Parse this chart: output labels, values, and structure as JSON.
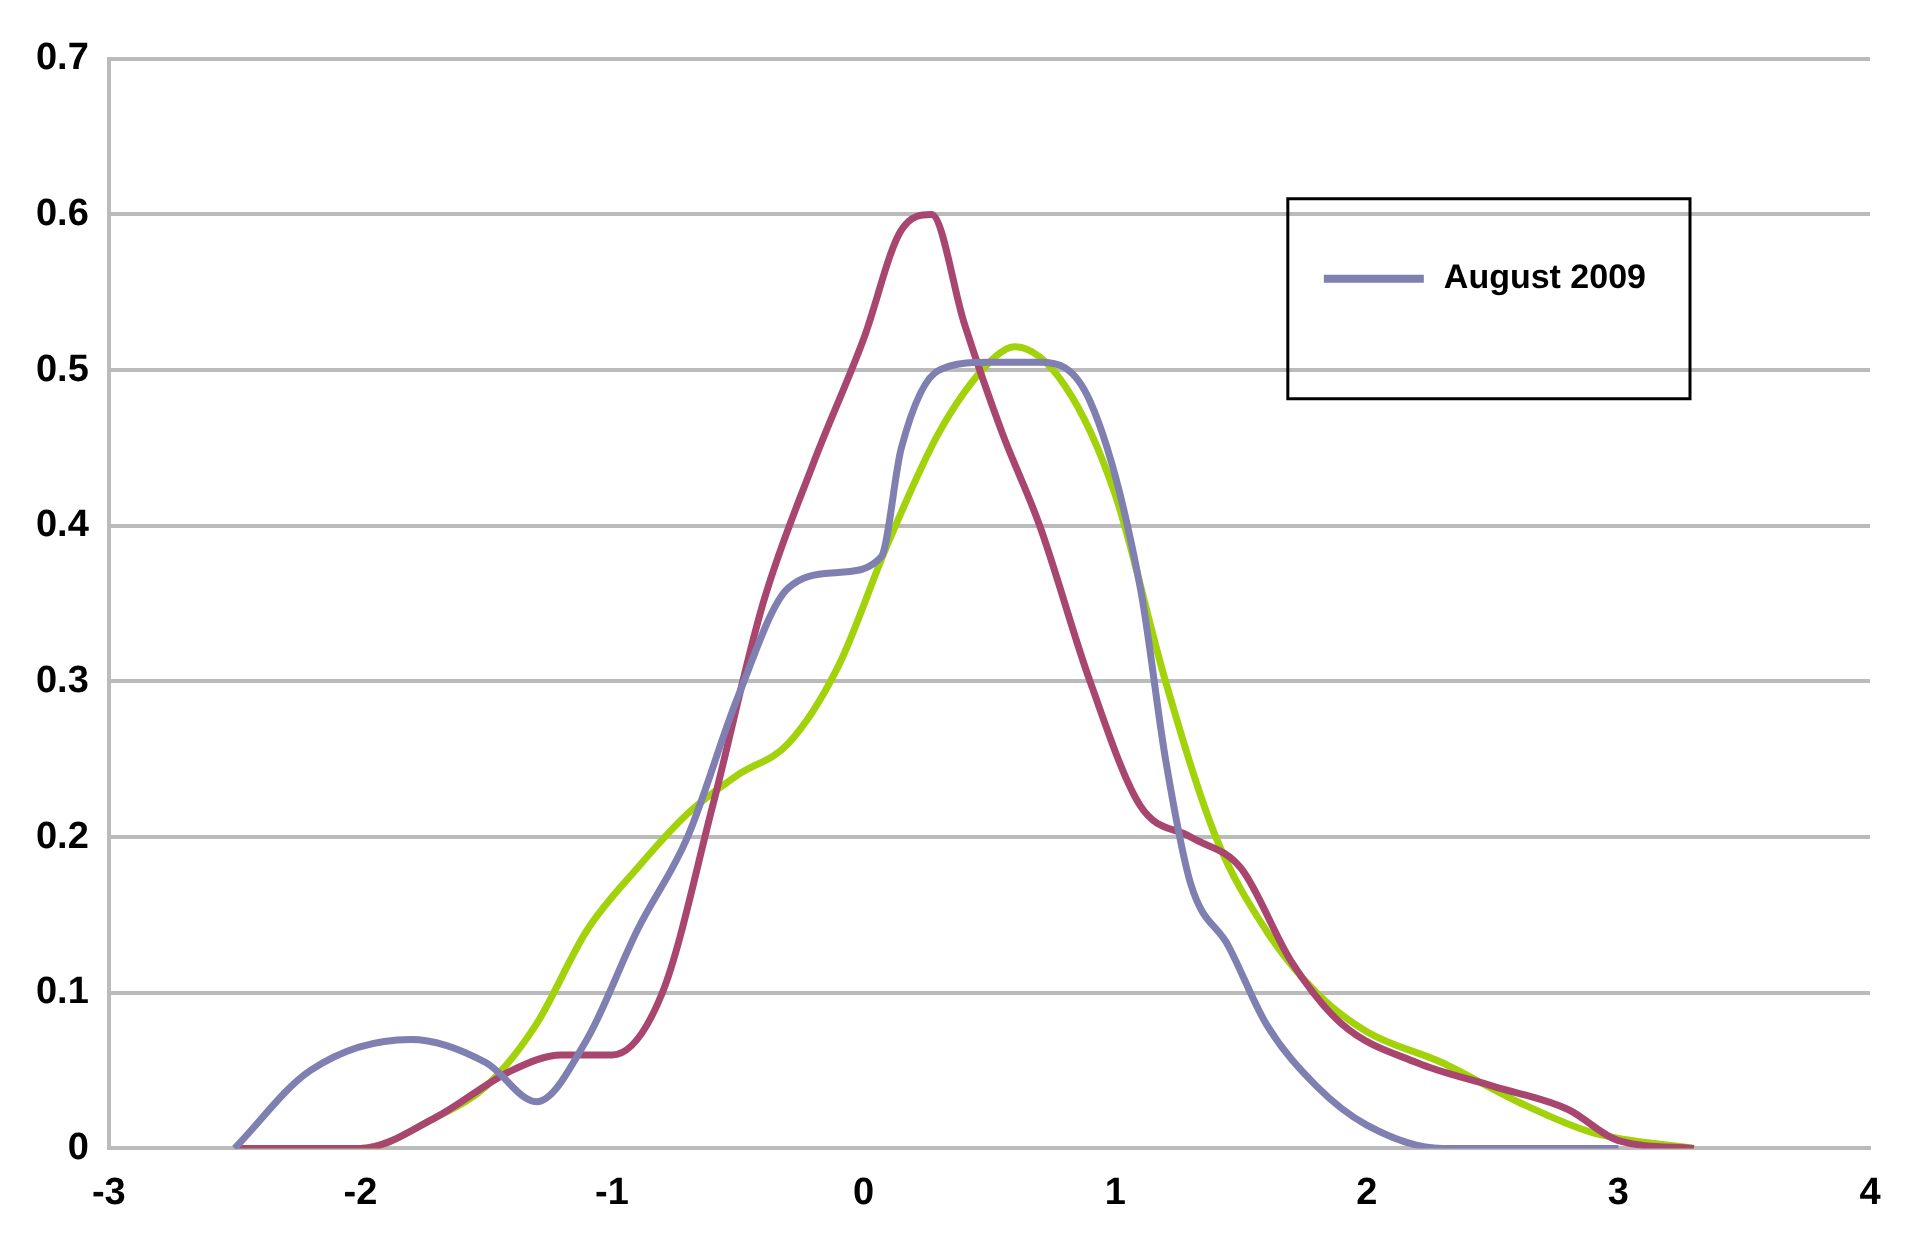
{
  "chart_data": {
    "type": "line",
    "xlim": [
      -3,
      4
    ],
    "xticks": [
      -3,
      -2,
      -1,
      0,
      1,
      2,
      3,
      4
    ],
    "ylim": [
      0,
      0.7
    ],
    "yticks": [
      0,
      0.1,
      0.2,
      0.3,
      0.4,
      0.5,
      0.6,
      0.7
    ],
    "grid": "y",
    "legend": "top right",
    "marker": "none",
    "line_style": "solid",
    "series": [
      {
        "name": "August 2009",
        "color": "#7f7fb2",
        "x": [
          -2.5,
          -2.2,
          -1.8,
          -1.5,
          -1.3,
          -1.1,
          -0.9,
          -0.7,
          -0.5,
          -0.3,
          -0.1,
          0.07,
          0.15,
          0.3,
          0.5,
          0.7,
          0.9,
          1.1,
          1.2,
          1.3,
          1.45,
          1.6,
          1.8,
          2.0,
          2.3,
          3.0
        ],
        "values": [
          0,
          0.05,
          0.07,
          0.055,
          0.03,
          0.07,
          0.14,
          0.2,
          0.29,
          0.36,
          0.37,
          0.38,
          0.45,
          0.5,
          0.505,
          0.505,
          0.48,
          0.36,
          0.25,
          0.17,
          0.13,
          0.08,
          0.04,
          0.015,
          0,
          0
        ]
      },
      {
        "color": "#a8466f",
        "x": [
          -2.5,
          -2.0,
          -1.7,
          -1.4,
          -1.2,
          -1.0,
          -0.8,
          -0.6,
          -0.4,
          -0.2,
          0,
          0.15,
          0.27,
          0.4,
          0.55,
          0.7,
          0.9,
          1.1,
          1.3,
          1.5,
          1.7,
          1.9,
          2.2,
          2.5,
          2.8,
          3.0,
          3.3
        ],
        "values": [
          0,
          0,
          0.02,
          0.05,
          0.06,
          0.06,
          0.1,
          0.22,
          0.35,
          0.44,
          0.52,
          0.59,
          0.6,
          0.53,
          0.46,
          0.4,
          0.3,
          0.22,
          0.2,
          0.18,
          0.12,
          0.08,
          0.055,
          0.04,
          0.025,
          0.005,
          0
        ]
      },
      {
        "color": "#a2d20a",
        "x": [
          -2.5,
          -2.0,
          -1.7,
          -1.5,
          -1.3,
          -1.1,
          -0.9,
          -0.7,
          -0.5,
          -0.3,
          -0.1,
          0.1,
          0.3,
          0.5,
          0.6,
          0.8,
          1.0,
          1.2,
          1.4,
          1.6,
          1.8,
          2.0,
          2.3,
          2.6,
          2.9,
          3.3
        ],
        "values": [
          0,
          0,
          0.02,
          0.04,
          0.08,
          0.14,
          0.18,
          0.215,
          0.24,
          0.26,
          0.31,
          0.39,
          0.46,
          0.505,
          0.515,
          0.49,
          0.42,
          0.3,
          0.2,
          0.14,
          0.1,
          0.075,
          0.055,
          0.03,
          0.01,
          0
        ]
      }
    ]
  }
}
